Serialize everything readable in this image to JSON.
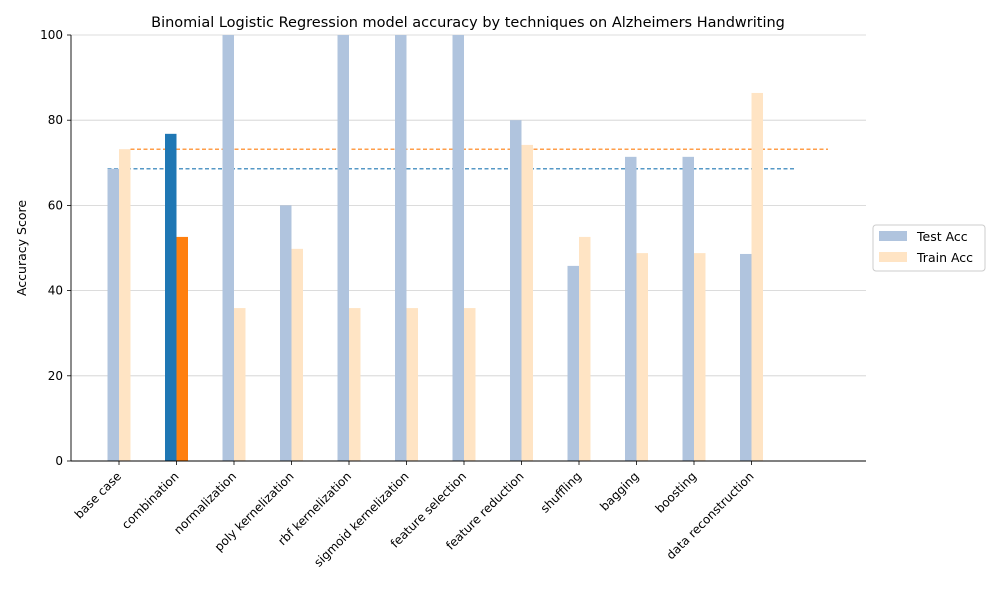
{
  "chart_data": {
    "type": "bar",
    "title": "Binomial Logistic Regression model accuracy by techniques on Alzheimers Handwriting",
    "xlabel": "",
    "ylabel": "Accuracy Score",
    "ylim": [
      0,
      100
    ],
    "yticks": [
      0,
      20,
      40,
      60,
      80,
      100
    ],
    "grid": "horizontal",
    "legend_position": "right",
    "categories": [
      "base case",
      "combination",
      "normalization",
      "poly kernelization",
      "rbf kernelization",
      "sigmoid kernelization",
      "feature selection",
      "feature reduction",
      "shuffling",
      "bagging",
      "boosting",
      "data reconstruction"
    ],
    "series": [
      {
        "name": "Test Acc",
        "color": "#b0c4de",
        "highlight_color": "#1f77b4",
        "values": [
          68.6,
          76.8,
          100,
          60,
          100,
          100,
          100,
          80,
          45.8,
          71.4,
          71.4,
          48.6
        ]
      },
      {
        "name": "Train Acc",
        "color": "#ffe4c4",
        "highlight_color": "#ff7f0e",
        "values": [
          73.2,
          52.6,
          35.9,
          49.8,
          35.9,
          35.9,
          35.9,
          74.2,
          52.6,
          48.8,
          48.8,
          86.4
        ]
      }
    ],
    "highlight_category": "combination",
    "reference_lines": [
      {
        "series": "Test Acc",
        "value": 68.6,
        "color": "#1f77b4",
        "style": "dashed"
      },
      {
        "series": "Train Acc",
        "value": 73.2,
        "color": "#ff7f0e",
        "style": "dashed"
      }
    ]
  }
}
